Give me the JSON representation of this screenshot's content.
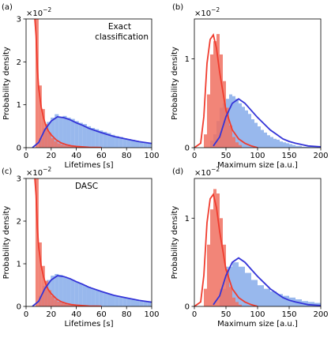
{
  "chart_data": [
    {
      "panel_label": "(a)",
      "type": "histogram",
      "xlabel": "Lifetimes [s]",
      "ylabel": "Probability density",
      "y_scale_label": "×10^{−2}",
      "y_multiplier": 0.01,
      "annotation": [
        "Exact",
        "classification"
      ],
      "xlim": [
        0,
        100
      ],
      "ylim": [
        0,
        3
      ],
      "xticks": [
        0,
        20,
        40,
        60,
        80,
        100
      ],
      "yticks": [
        0,
        1,
        2,
        3
      ],
      "grid": false,
      "series": [
        {
          "color": "#f03c2e",
          "bin_width": 2.5,
          "bin_start": 7.5,
          "histogram": [
            3.0,
            1.45,
            0.9,
            0.55,
            0.35,
            0.22,
            0.15,
            0.1,
            0.07,
            0.05,
            0.04,
            0.03,
            0.02,
            0.015,
            0.01,
            0.01
          ],
          "fit_curve": {
            "x": [
              7,
              8,
              9,
              10,
              12,
              14,
              16,
              18,
              20,
              24,
              28,
              32,
              36,
              40,
              50,
              60
            ],
            "y": [
              3.0,
              2.6,
              1.85,
              1.4,
              0.95,
              0.68,
              0.5,
              0.38,
              0.3,
              0.18,
              0.11,
              0.07,
              0.045,
              0.03,
              0.01,
              0.003
            ]
          }
        },
        {
          "color": "#3434d8",
          "bin_width": 3.2,
          "bin_start": 10,
          "histogram": [
            0.22,
            0.45,
            0.6,
            0.7,
            0.78,
            0.72,
            0.74,
            0.7,
            0.67,
            0.62,
            0.58,
            0.55,
            0.5,
            0.46,
            0.43,
            0.4,
            0.37,
            0.34,
            0.3,
            0.27,
            0.25,
            0.22,
            0.2,
            0.18,
            0.16,
            0.14,
            0.12,
            0.11
          ],
          "fit_curve": {
            "x": [
              5,
              10,
              15,
              20,
              25,
              30,
              35,
              40,
              45,
              50,
              60,
              70,
              80,
              90,
              100
            ],
            "y": [
              0.0,
              0.12,
              0.42,
              0.62,
              0.72,
              0.7,
              0.65,
              0.58,
              0.52,
              0.45,
              0.35,
              0.26,
              0.2,
              0.14,
              0.1
            ]
          }
        }
      ]
    },
    {
      "panel_label": "(b)",
      "type": "histogram",
      "xlabel": "Maximum size [a.u.]",
      "ylabel": "Probability density",
      "y_scale_label": "×10^{−2}",
      "y_multiplier": 0.01,
      "xlim": [
        0,
        200
      ],
      "ylim": [
        0,
        1.45
      ],
      "xticks": [
        0,
        50,
        100,
        150,
        200
      ],
      "yticks": [
        0,
        1
      ],
      "grid": false,
      "series": [
        {
          "color": "#f03c2e",
          "bin_width": 5,
          "bin_start": 15,
          "histogram": [
            0.15,
            0.6,
            1.05,
            1.2,
            1.28,
            1.05,
            0.75,
            0.45,
            0.25,
            0.12,
            0.06,
            0.03
          ],
          "fit_curve": {
            "x": [
              0,
              10,
              15,
              20,
              25,
              30,
              35,
              40,
              50,
              60,
              70,
              80,
              90,
              100
            ],
            "y": [
              0.0,
              0.05,
              0.35,
              0.95,
              1.22,
              1.27,
              1.12,
              0.85,
              0.42,
              0.2,
              0.1,
              0.05,
              0.02,
              0.0
            ]
          }
        },
        {
          "color": "#3434d8",
          "bin_width": 5,
          "bin_start": 25,
          "histogram": [
            0.08,
            0.15,
            0.3,
            0.45,
            0.5,
            0.55,
            0.6,
            0.58,
            0.55,
            0.5,
            0.46,
            0.42,
            0.38,
            0.32,
            0.28,
            0.24,
            0.2,
            0.17,
            0.14,
            0.12,
            0.1,
            0.09,
            0.07,
            0.06,
            0.05,
            0.04,
            0.03,
            0.02,
            0.02,
            0.01,
            0.01,
            0.01,
            0.01,
            0.01,
            0.005
          ],
          "fit_curve": {
            "x": [
              30,
              40,
              50,
              60,
              70,
              80,
              90,
              100,
              110,
              120,
              130,
              140,
              150,
              160,
              180,
              200
            ],
            "y": [
              0.02,
              0.12,
              0.35,
              0.5,
              0.55,
              0.5,
              0.42,
              0.34,
              0.27,
              0.2,
              0.15,
              0.1,
              0.07,
              0.05,
              0.02,
              0.01
            ]
          }
        }
      ]
    },
    {
      "panel_label": "(c)",
      "type": "histogram",
      "xlabel": "Lifetimes [s]",
      "ylabel": "Probability density",
      "y_scale_label": "×10^{−2}",
      "y_multiplier": 0.01,
      "annotation": [
        "DASC"
      ],
      "xlim": [
        0,
        100
      ],
      "ylim": [
        0,
        3
      ],
      "xticks": [
        0,
        20,
        40,
        60,
        80,
        100
      ],
      "yticks": [
        0,
        1,
        2,
        3
      ],
      "grid": false,
      "series": [
        {
          "color": "#f03c2e",
          "bin_width": 2.5,
          "bin_start": 7.5,
          "histogram": [
            3.0,
            1.5,
            0.95,
            0.6,
            0.38,
            0.24,
            0.16,
            0.11,
            0.08,
            0.06,
            0.04,
            0.03,
            0.02,
            0.015,
            0.01,
            0.01
          ],
          "fit_curve": {
            "x": [
              7,
              8,
              9,
              10,
              12,
              14,
              16,
              18,
              20,
              24,
              28,
              32,
              36,
              40,
              50,
              60
            ],
            "y": [
              3.0,
              2.6,
              1.85,
              1.4,
              0.95,
              0.68,
              0.5,
              0.38,
              0.3,
              0.18,
              0.11,
              0.07,
              0.045,
              0.03,
              0.01,
              0.003
            ]
          }
        },
        {
          "color": "#3434d8",
          "bin_width": 3.2,
          "bin_start": 10,
          "histogram": [
            0.25,
            0.48,
            0.62,
            0.72,
            0.76,
            0.74,
            0.7,
            0.66,
            0.62,
            0.58,
            0.54,
            0.5,
            0.46,
            0.42,
            0.39,
            0.36,
            0.33,
            0.3,
            0.27,
            0.24,
            0.22,
            0.2,
            0.18,
            0.16,
            0.14,
            0.12,
            0.11,
            0.1
          ],
          "fit_curve": {
            "x": [
              5,
              10,
              15,
              20,
              25,
              30,
              35,
              40,
              45,
              50,
              60,
              70,
              80,
              90,
              100
            ],
            "y": [
              0.0,
              0.12,
              0.42,
              0.62,
              0.72,
              0.7,
              0.65,
              0.58,
              0.52,
              0.45,
              0.35,
              0.26,
              0.2,
              0.14,
              0.1
            ]
          }
        }
      ]
    },
    {
      "panel_label": "(d)",
      "type": "histogram",
      "xlabel": "Maximum size [a.u.]",
      "ylabel": "Probability density",
      "y_scale_label": "×10^{−2}",
      "y_multiplier": 0.01,
      "xlim": [
        0,
        200
      ],
      "ylim": [
        0,
        1.45
      ],
      "xticks": [
        0,
        50,
        100,
        150,
        200
      ],
      "yticks": [
        0,
        1
      ],
      "grid": false,
      "series": [
        {
          "color": "#f03c2e",
          "bin_width": 5,
          "bin_start": 15,
          "histogram": [
            0.2,
            0.7,
            1.1,
            1.33,
            1.28,
            1.0,
            0.7,
            0.42,
            0.22,
            0.1,
            0.05,
            0.02
          ],
          "fit_curve": {
            "x": [
              0,
              10,
              15,
              20,
              25,
              30,
              35,
              40,
              50,
              60,
              70,
              80,
              90,
              100
            ],
            "y": [
              0.0,
              0.05,
              0.35,
              0.95,
              1.22,
              1.27,
              1.12,
              0.85,
              0.42,
              0.2,
              0.1,
              0.05,
              0.02,
              0.0
            ]
          }
        },
        {
          "color": "#3434d8",
          "bin_width": 10,
          "bin_start": 40,
          "histogram": [
            0.2,
            0.45,
            0.5,
            0.45,
            0.38,
            0.3,
            0.24,
            0.2,
            0.17,
            0.14,
            0.12,
            0.1,
            0.08,
            0.06,
            0.05,
            0.04
          ],
          "fit_curve": {
            "x": [
              30,
              40,
              50,
              60,
              70,
              80,
              90,
              100,
              110,
              120,
              130,
              140,
              150,
              160,
              180,
              200
            ],
            "y": [
              0.02,
              0.12,
              0.35,
              0.5,
              0.55,
              0.5,
              0.42,
              0.34,
              0.27,
              0.2,
              0.15,
              0.1,
              0.07,
              0.05,
              0.02,
              0.01
            ]
          }
        }
      ]
    }
  ]
}
